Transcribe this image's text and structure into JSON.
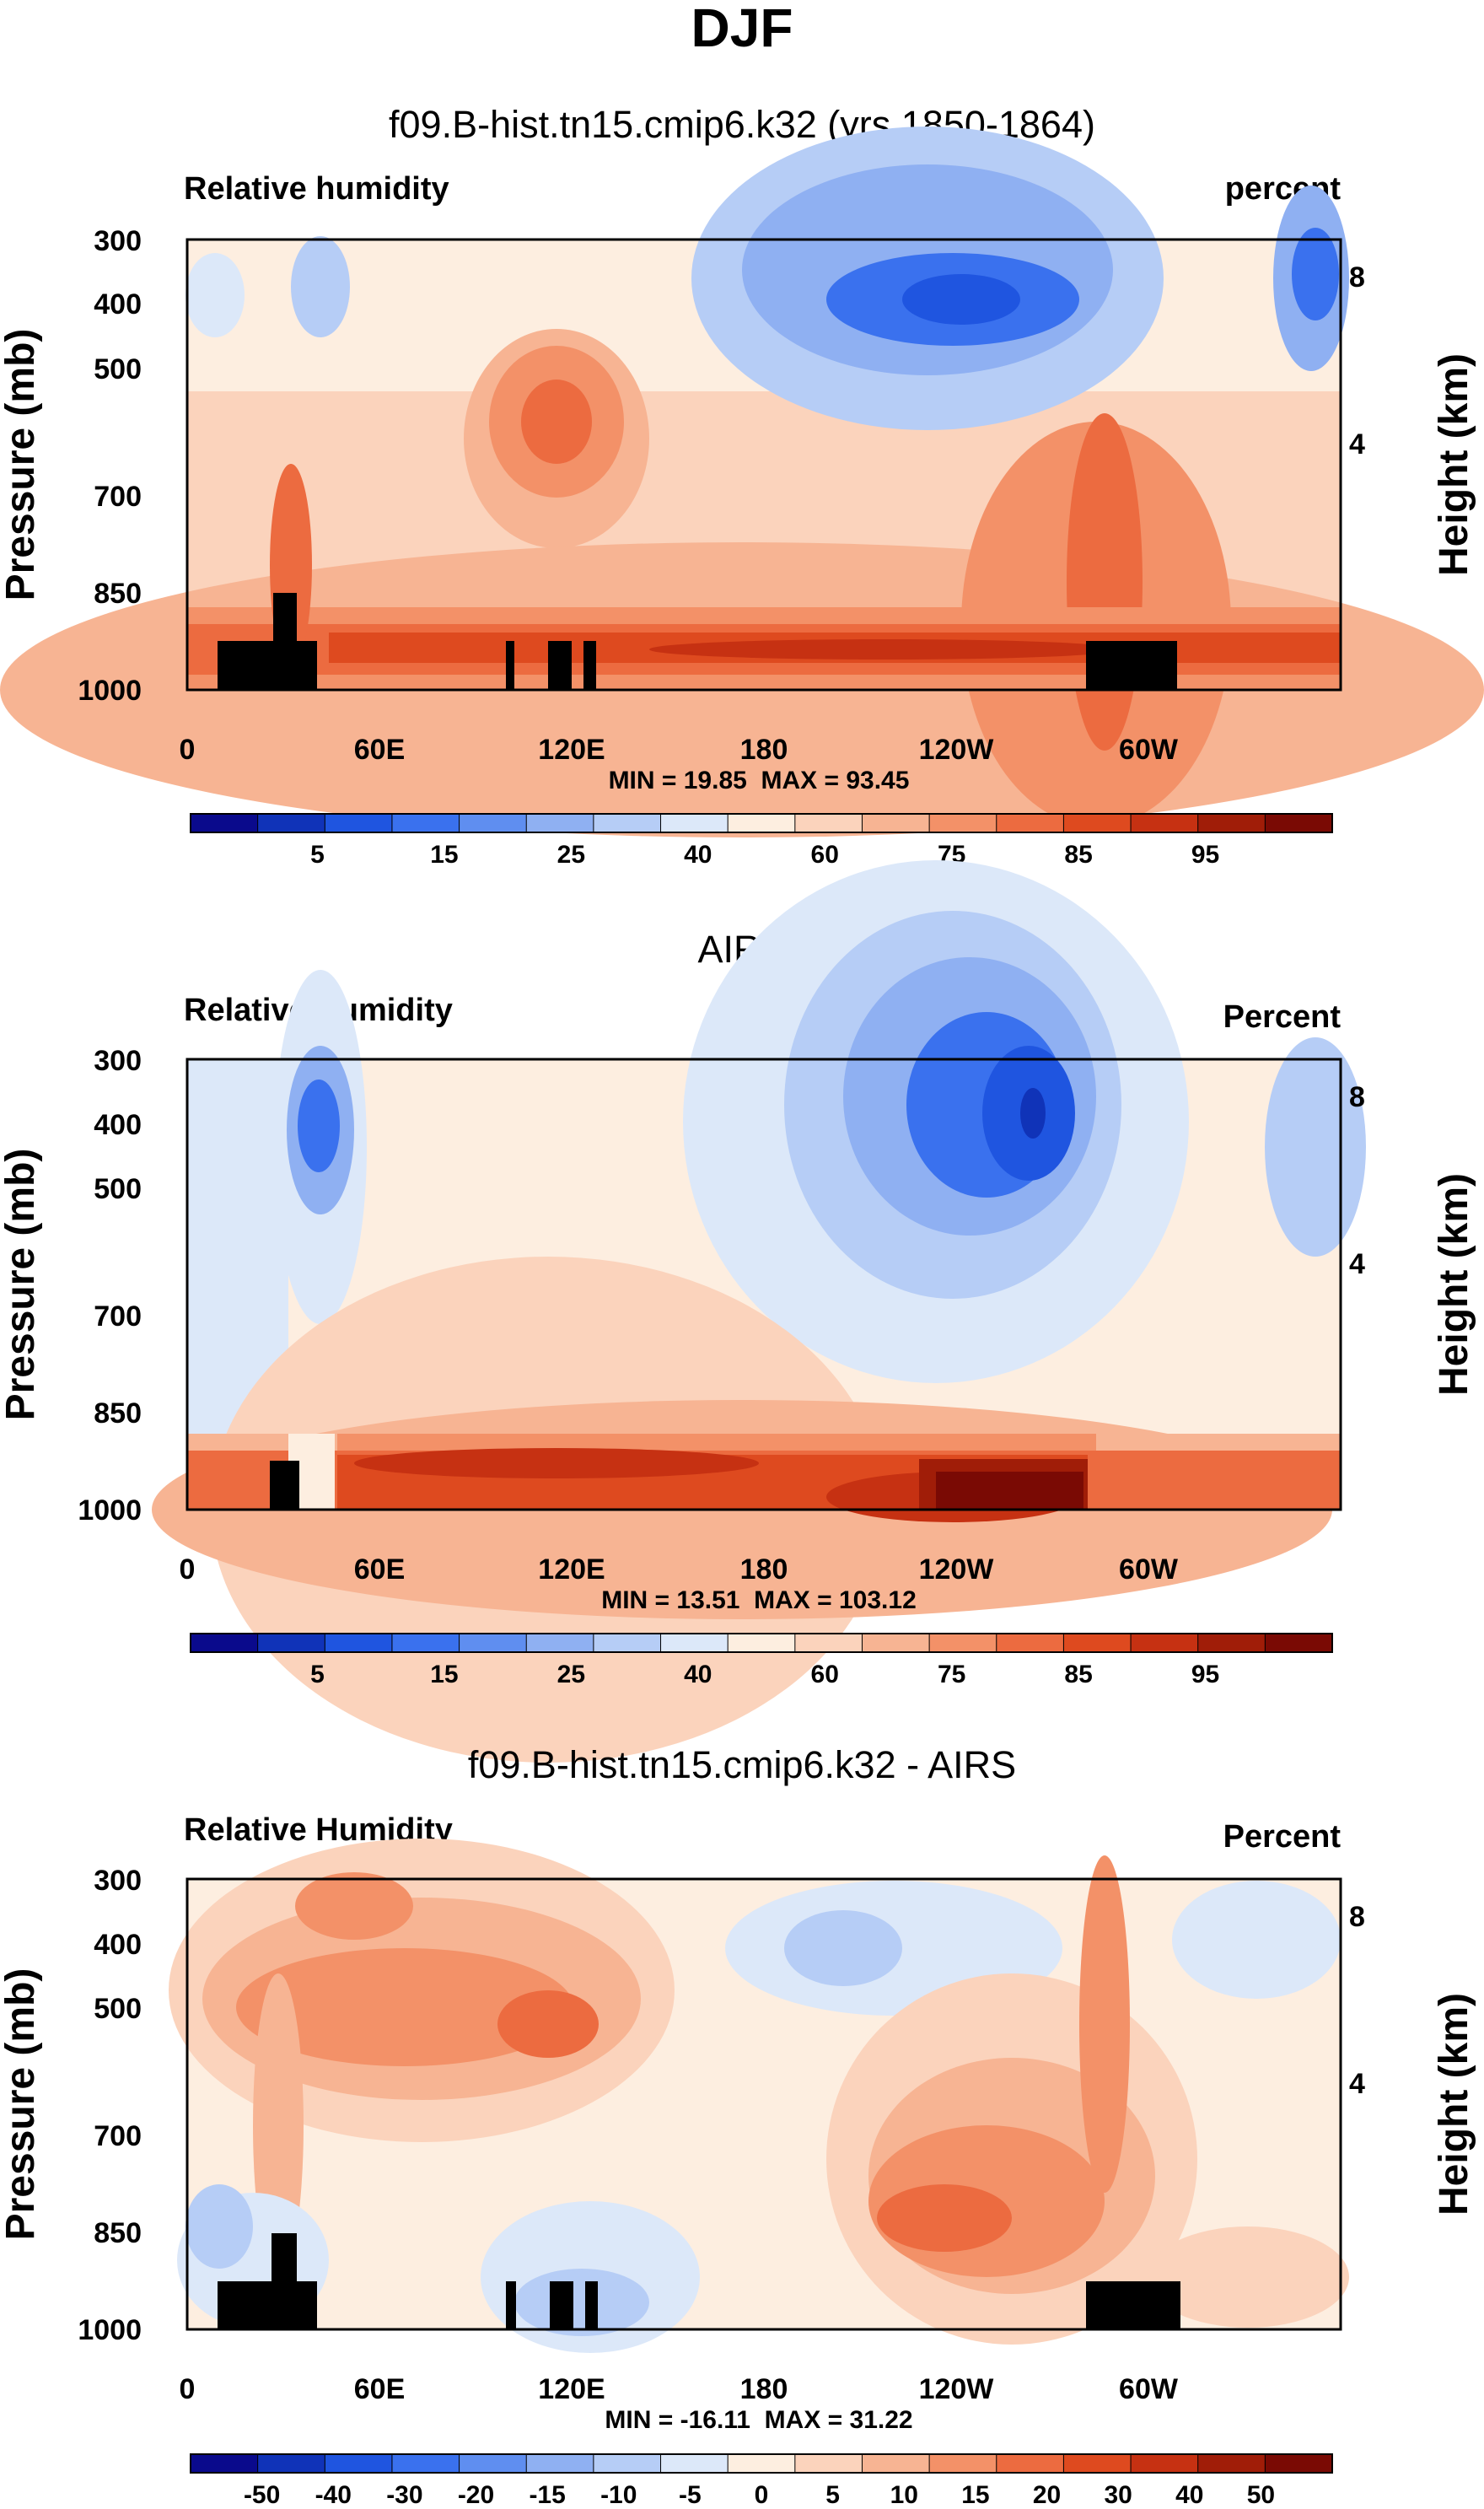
{
  "figure_title": "DJF",
  "chart_data": [
    {
      "type": "heatmap",
      "title": "f09.B-hist.tn15.cmip6.k32 (yrs 1850-1864)",
      "variable": "Relative humidity",
      "units": "percent",
      "xlabel": "",
      "ylabel": "Pressure (mb)",
      "ylabel_right": "Height (km)",
      "x_ticks": [
        "0",
        "60E",
        "120E",
        "180",
        "120W",
        "60W"
      ],
      "y_ticks": [
        "300",
        "400",
        "500",
        "700",
        "850",
        "1000"
      ],
      "y_right_ticks": [
        "8",
        "4"
      ],
      "stats": "MIN = 19.85  MAX = 93.45",
      "min": 19.85,
      "max": 93.45,
      "colorbar_labels": [
        "5",
        "15",
        "25",
        "40",
        "60",
        "75",
        "85",
        "95"
      ]
    },
    {
      "type": "heatmap",
      "title": "AIRS",
      "variable": "Relative Humidity",
      "units": "Percent",
      "xlabel": "",
      "ylabel": "Pressure (mb)",
      "ylabel_right": "Height (km)",
      "x_ticks": [
        "0",
        "60E",
        "120E",
        "180",
        "120W",
        "60W"
      ],
      "y_ticks": [
        "300",
        "400",
        "500",
        "700",
        "850",
        "1000"
      ],
      "y_right_ticks": [
        "8",
        "4"
      ],
      "stats": "MIN = 13.51  MAX = 103.12",
      "min": 13.51,
      "max": 103.12,
      "colorbar_labels": [
        "5",
        "15",
        "25",
        "40",
        "60",
        "75",
        "85",
        "95"
      ]
    },
    {
      "type": "heatmap",
      "title": "f09.B-hist.tn15.cmip6.k32 - AIRS",
      "variable": "Relative Humidity",
      "units": "Percent",
      "xlabel": "",
      "ylabel": "Pressure (mb)",
      "ylabel_right": "Height (km)",
      "x_ticks": [
        "0",
        "60E",
        "120E",
        "180",
        "120W",
        "60W"
      ],
      "y_ticks": [
        "300",
        "400",
        "500",
        "700",
        "850",
        "1000"
      ],
      "y_right_ticks": [
        "8",
        "4"
      ],
      "stats": "MIN = -16.11  MAX = 31.22",
      "min": -16.11,
      "max": 31.22,
      "colorbar_labels": [
        "-50",
        "-40",
        "-30",
        "-20",
        "-15",
        "-10",
        "-5",
        "0",
        "5",
        "10",
        "15",
        "20",
        "30",
        "40",
        "50"
      ]
    }
  ],
  "colors": {
    "palette": [
      "#0a0a8c",
      "#1033b8",
      "#1f55e0",
      "#3a71ee",
      "#5f8ef0",
      "#8fb0f2",
      "#b6cdf6",
      "#dce8f9",
      "#fdeee0",
      "#fbd3bc",
      "#f7b493",
      "#f39168",
      "#ec6b40",
      "#de4a1f",
      "#c63112",
      "#a01d08",
      "#7a0a04"
    ],
    "topography": "#000000"
  }
}
